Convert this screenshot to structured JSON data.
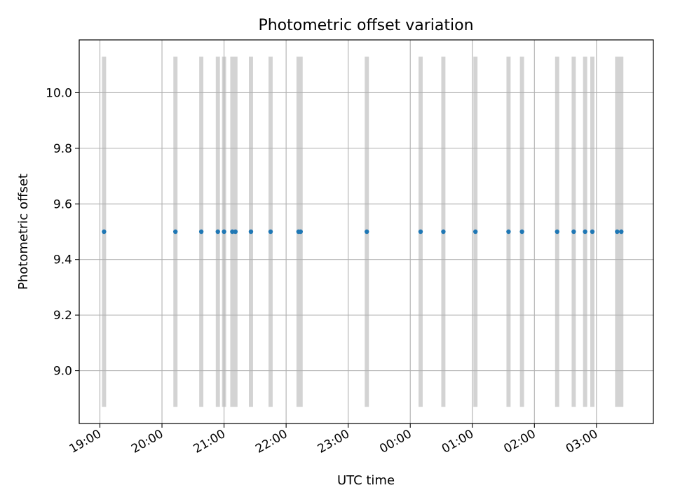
{
  "chart_data": {
    "type": "scatter",
    "title": "Photometric offset variation",
    "xlabel": "UTC time",
    "ylabel": "Photometric offset",
    "x_axis_kind": "time",
    "xlim": [
      "18:40",
      "03:55"
    ],
    "ylim": [
      8.81,
      10.19
    ],
    "x_ticks": [
      "19:00",
      "20:00",
      "21:00",
      "22:00",
      "23:00",
      "00:00",
      "01:00",
      "02:00",
      "03:00"
    ],
    "y_ticks": [
      "9.0",
      "9.2",
      "9.4",
      "9.6",
      "9.8",
      "10.0"
    ],
    "grid": true,
    "series": [
      {
        "color": "#1f77b4",
        "points": [
          {
            "x": "19:04",
            "y": 9.5
          },
          {
            "x": "20:13",
            "y": 9.5
          },
          {
            "x": "20:38",
            "y": 9.5
          },
          {
            "x": "20:54",
            "y": 9.5
          },
          {
            "x": "21:00",
            "y": 9.5
          },
          {
            "x": "21:08",
            "y": 9.5
          },
          {
            "x": "21:11",
            "y": 9.5
          },
          {
            "x": "21:26",
            "y": 9.5
          },
          {
            "x": "21:45",
            "y": 9.5
          },
          {
            "x": "22:12",
            "y": 9.5
          },
          {
            "x": "22:14",
            "y": 9.5
          },
          {
            "x": "23:18",
            "y": 9.5
          },
          {
            "x": "00:10",
            "y": 9.5
          },
          {
            "x": "00:32",
            "y": 9.5
          },
          {
            "x": "01:03",
            "y": 9.5
          },
          {
            "x": "01:35",
            "y": 9.5
          },
          {
            "x": "01:48",
            "y": 9.5
          },
          {
            "x": "02:22",
            "y": 9.5
          },
          {
            "x": "02:38",
            "y": 9.5
          },
          {
            "x": "02:49",
            "y": 9.5
          },
          {
            "x": "02:56",
            "y": 9.5
          },
          {
            "x": "03:20",
            "y": 9.5
          },
          {
            "x": "03:24",
            "y": 9.5
          }
        ]
      }
    ],
    "bands": {
      "color": "#d3d3d3",
      "ymin": 8.87,
      "ymax": 10.13,
      "intervals": [
        [
          "19:02",
          "19:06"
        ],
        [
          "20:11",
          "20:15"
        ],
        [
          "20:36",
          "20:40"
        ],
        [
          "20:52",
          "20:56"
        ],
        [
          "20:58",
          "21:02"
        ],
        [
          "21:06",
          "21:13"
        ],
        [
          "21:24",
          "21:28"
        ],
        [
          "21:43",
          "21:47"
        ],
        [
          "22:10",
          "22:16"
        ],
        [
          "23:16",
          "23:20"
        ],
        [
          "00:08",
          "00:12"
        ],
        [
          "00:30",
          "00:34"
        ],
        [
          "01:01",
          "01:05"
        ],
        [
          "01:33",
          "01:37"
        ],
        [
          "01:46",
          "01:50"
        ],
        [
          "02:20",
          "02:24"
        ],
        [
          "02:36",
          "02:40"
        ],
        [
          "02:47",
          "02:51"
        ],
        [
          "02:54",
          "02:58"
        ],
        [
          "03:18",
          "03:26"
        ]
      ]
    }
  }
}
